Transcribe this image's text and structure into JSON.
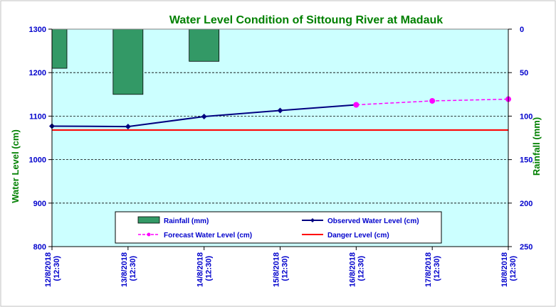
{
  "chart_data": {
    "type": "bar+line",
    "title": "Water Level Condition of Sittoung River at  Madauk",
    "categories": [
      "12/8/2018 (12:30)",
      "13/8/2018 (12:30)",
      "14/8/2018 (12:30)",
      "15/8/2018 (12:30)",
      "16/8/2018 (12:30)",
      "17/8/2018 (12:30)",
      "18/8/2018 (12:30)"
    ],
    "x_tick_labels": [
      [
        "12/8/2018",
        "(12:30)"
      ],
      [
        "13/8/2018",
        "(12:30)"
      ],
      [
        "14/8/2018",
        "(12:30)"
      ],
      [
        "15/8/2018",
        "(12:30)"
      ],
      [
        "16/8/2018",
        "(12:30)"
      ],
      [
        "17/8/2018",
        "(12:30)"
      ],
      [
        "18/8/2018",
        "(12:30)"
      ]
    ],
    "ylabel_left": "Water  Level (cm)",
    "ylabel_right": "Rainfall (mm)",
    "ylim_left": [
      800,
      1300
    ],
    "yticks_left": [
      800,
      900,
      1000,
      1100,
      1200,
      1300
    ],
    "ylim_right_inverted": [
      0,
      250
    ],
    "yticks_right": [
      0,
      50,
      100,
      150,
      200,
      250
    ],
    "rainfall": {
      "name": "Rainfall (mm)",
      "color": "#339966",
      "bars": [
        {
          "x": 0,
          "value": 45
        },
        {
          "x": 1,
          "value": 75
        },
        {
          "x": 2,
          "value": 37
        }
      ]
    },
    "observed": {
      "name": "Observed Water Level (cm)",
      "color": "#000080",
      "values": [
        1077,
        1076,
        1099,
        1113,
        1126,
        null,
        null
      ]
    },
    "forecast": {
      "name": "Forecast Water Level (cm)",
      "color": "#ff00ff",
      "values": [
        null,
        null,
        null,
        null,
        1126,
        1135,
        1139
      ]
    },
    "danger": {
      "name": "Danger Level (cm)",
      "color": "#ff0000",
      "value": 1068
    },
    "plot_background": "#ccffff",
    "grid": true,
    "legend_position": "bottom-center"
  }
}
